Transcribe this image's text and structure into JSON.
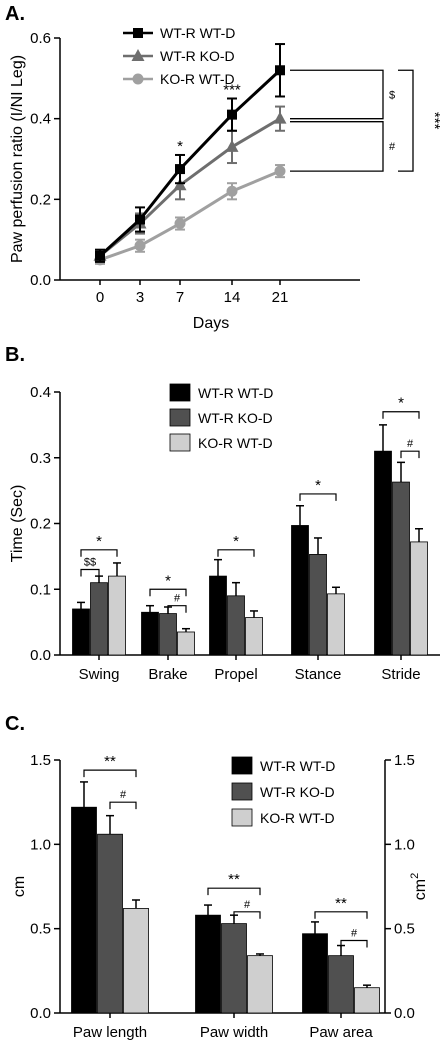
{
  "colors": {
    "black": "#000000",
    "dark_gray": "#505050",
    "mid_gray": "#6e6e6e",
    "light_gray": "#a0a0a0",
    "bar_light": "#cfcfcf"
  },
  "chart_data": [
    {
      "panel": "A.",
      "type": "line",
      "xlabel": "Days",
      "ylabel": "Paw perfusion ratio (I/NI Leg)",
      "x": [
        0,
        3,
        7,
        14,
        21
      ],
      "x_tick_labels": [
        "0",
        "3",
        "7",
        "14",
        "21"
      ],
      "y_ticks": [
        "0.0",
        "0.2",
        "0.4",
        "0.6"
      ],
      "ylim": [
        0,
        0.6
      ],
      "legend_position": "top-left",
      "series": [
        {
          "name": "WT-R WT-D",
          "marker": "square",
          "color": "#000000",
          "values": [
            0.06,
            0.15,
            0.275,
            0.41,
            0.52
          ],
          "errors": [
            0.015,
            0.03,
            0.035,
            0.04,
            0.065
          ]
        },
        {
          "name": "WT-R KO-D",
          "marker": "triangle",
          "color": "#6e6e6e",
          "values": [
            0.06,
            0.14,
            0.235,
            0.33,
            0.4
          ],
          "errors": [
            0.015,
            0.025,
            0.035,
            0.04,
            0.03
          ]
        },
        {
          "name": "KO-R WT-D",
          "marker": "circle",
          "color": "#a0a0a0",
          "values": [
            0.05,
            0.085,
            0.14,
            0.22,
            0.27
          ],
          "errors": [
            0.01,
            0.015,
            0.015,
            0.02,
            0.015
          ]
        }
      ],
      "annotations": [
        {
          "at_x": 7,
          "text": "*"
        },
        {
          "at_x": 14,
          "text": "***"
        }
      ],
      "brackets": [
        {
          "between": [
            "WT-R WT-D",
            "WT-R KO-D"
          ],
          "text": "$"
        },
        {
          "between": [
            "WT-R KO-D",
            "KO-R WT-D"
          ],
          "text": "#"
        },
        {
          "between": [
            "WT-R WT-D",
            "KO-R WT-D"
          ],
          "text": "***"
        }
      ]
    },
    {
      "panel": "B.",
      "type": "bar",
      "ylabel": "Time (Sec)",
      "categories": [
        "Swing",
        "Brake",
        "Propel",
        "Stance",
        "Stride"
      ],
      "y_ticks": [
        "0.0",
        "0.1",
        "0.2",
        "0.3",
        "0.4"
      ],
      "ylim": [
        0,
        0.4
      ],
      "legend_position": "top-left",
      "series": [
        {
          "name": "WT-R WT-D",
          "color": "#000000",
          "values": [
            0.07,
            0.065,
            0.12,
            0.197,
            0.31
          ],
          "errors": [
            0.01,
            0.01,
            0.025,
            0.03,
            0.04
          ]
        },
        {
          "name": "WT-R KO-D",
          "color": "#505050",
          "values": [
            0.11,
            0.063,
            0.09,
            0.153,
            0.263
          ],
          "errors": [
            0.01,
            0.01,
            0.02,
            0.025,
            0.03
          ]
        },
        {
          "name": "KO-R WT-D",
          "color": "#cfcfcf",
          "values": [
            0.12,
            0.035,
            0.057,
            0.093,
            0.172
          ],
          "errors": [
            0.02,
            0.005,
            0.01,
            0.01,
            0.02
          ]
        }
      ],
      "brackets": [
        {
          "category": "Swing",
          "from": 0,
          "to": 2,
          "y": 0.16,
          "text": "*"
        },
        {
          "category": "Swing",
          "from": 0,
          "to": 1,
          "y": 0.13,
          "text": "$$"
        },
        {
          "category": "Brake",
          "from": 0,
          "to": 2,
          "y": 0.1,
          "text": "*"
        },
        {
          "category": "Brake",
          "from": 1,
          "to": 2,
          "y": 0.075,
          "text": "#"
        },
        {
          "category": "Propel",
          "from": 0,
          "to": 2,
          "y": 0.16,
          "text": "*"
        },
        {
          "category": "Stance",
          "from": 0,
          "to": 2,
          "y": 0.245,
          "text": "*"
        },
        {
          "category": "Stride",
          "from": 0,
          "to": 2,
          "y": 0.37,
          "text": "*"
        },
        {
          "category": "Stride",
          "from": 1,
          "to": 2,
          "y": 0.31,
          "text": "#"
        }
      ]
    },
    {
      "panel": "C.",
      "type": "bar",
      "ylabel": "cm",
      "ylabel_right": "cm",
      "ylabel_right_superscript": "2",
      "categories": [
        "Paw length",
        "Paw width",
        "Paw area"
      ],
      "y_ticks": [
        "0.0",
        "0.5",
        "1.0",
        "1.5"
      ],
      "y_ticks_right": [
        "0.0",
        "0.5",
        "1.0",
        "1.5"
      ],
      "ylim": [
        0,
        1.5
      ],
      "legend_position": "top-right",
      "series": [
        {
          "name": "WT-R WT-D",
          "color": "#000000",
          "values": [
            1.22,
            0.58,
            0.47
          ],
          "errors": [
            0.15,
            0.06,
            0.07
          ]
        },
        {
          "name": "WT-R KO-D",
          "color": "#505050",
          "values": [
            1.06,
            0.53,
            0.34
          ],
          "errors": [
            0.11,
            0.05,
            0.06
          ]
        },
        {
          "name": "KO-R WT-D",
          "color": "#cfcfcf",
          "values": [
            0.62,
            0.34,
            0.15
          ],
          "errors": [
            0.05,
            0.01,
            0.015
          ]
        }
      ],
      "brackets": [
        {
          "category": "Paw length",
          "from": 0,
          "to": 2,
          "y": 1.44,
          "text": "**"
        },
        {
          "category": "Paw length",
          "from": 1,
          "to": 2,
          "y": 1.25,
          "text": "#"
        },
        {
          "category": "Paw width",
          "from": 0,
          "to": 2,
          "y": 0.74,
          "text": "**"
        },
        {
          "category": "Paw width",
          "from": 1,
          "to": 2,
          "y": 0.6,
          "text": "#"
        },
        {
          "category": "Paw area",
          "from": 0,
          "to": 2,
          "y": 0.6,
          "text": "**"
        },
        {
          "category": "Paw area",
          "from": 1,
          "to": 2,
          "y": 0.43,
          "text": "#"
        }
      ]
    }
  ]
}
